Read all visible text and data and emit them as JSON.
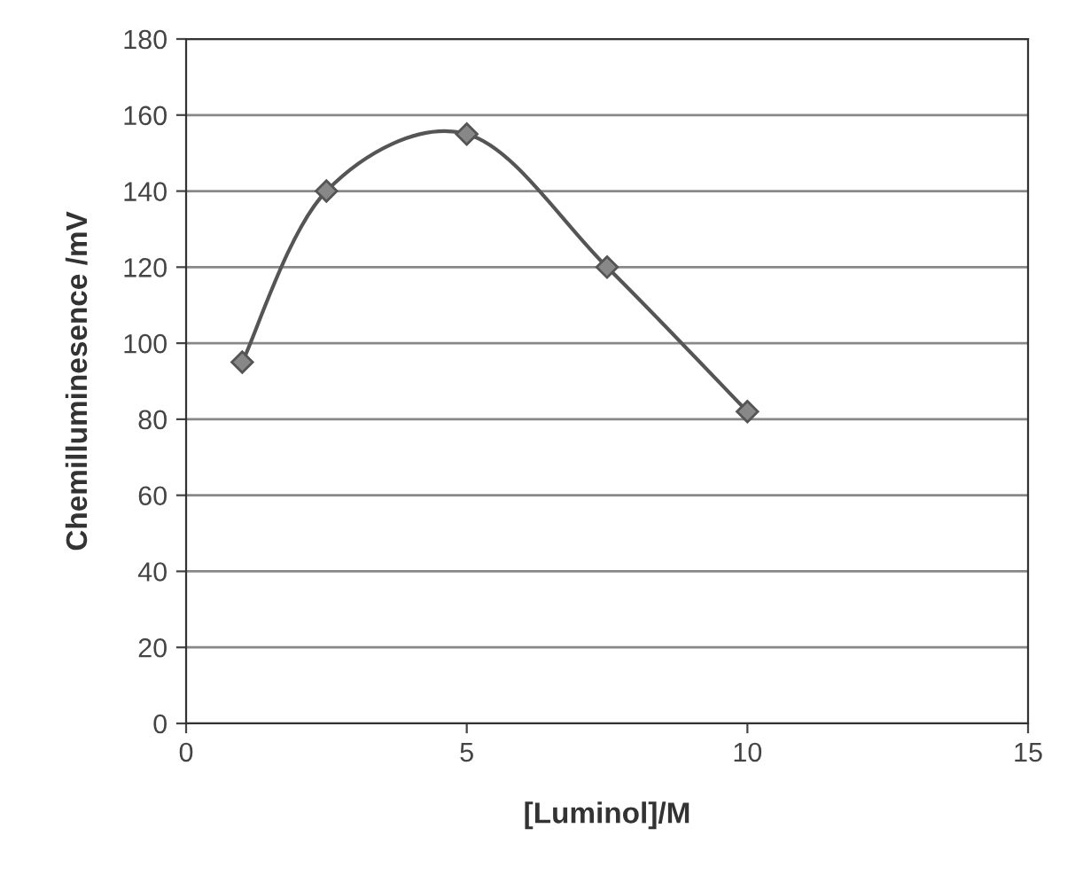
{
  "chart_data": {
    "type": "line",
    "xlabel": "[Luminol]/M",
    "ylabel": "Chemilluminesence /mV",
    "x": [
      1,
      2.5,
      5,
      7.5,
      10
    ],
    "series": [
      {
        "color": "#555555",
        "values": [
          95,
          140,
          155,
          120,
          82
        ]
      }
    ],
    "xlim": [
      0,
      15
    ],
    "xticks": [
      0,
      5,
      10,
      15
    ],
    "ylim": [
      0,
      180
    ],
    "yticks": [
      0,
      20,
      40,
      60,
      80,
      100,
      120,
      140,
      160,
      180
    ],
    "grid": "y",
    "marker": "diamond",
    "line_style": "solid"
  }
}
